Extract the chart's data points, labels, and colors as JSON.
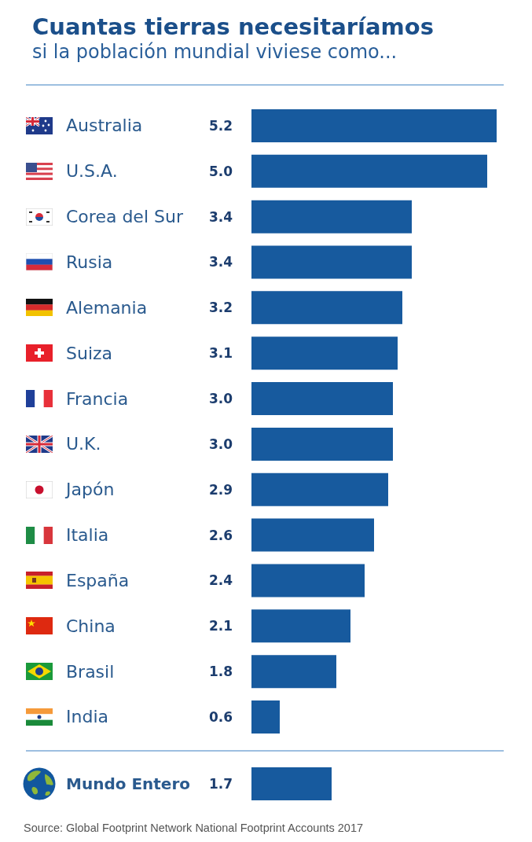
{
  "chart_data": [
    {
      "type": "bar",
      "orientation": "horizontal",
      "title": "Cuantas tierras necesitaríamos",
      "subtitle": "si la población mundial viviese como...",
      "categories": [
        "Australia",
        "U.S.A.",
        "Corea del Sur",
        "Rusia",
        "Alemania",
        "Suiza",
        "Francia",
        "U.K.",
        "Japón",
        "Italia",
        "España",
        "China",
        "Brasil",
        "India"
      ],
      "values": [
        5.2,
        5.0,
        3.4,
        3.4,
        3.2,
        3.1,
        3.0,
        3.0,
        2.9,
        2.6,
        2.4,
        2.1,
        1.8,
        0.6
      ],
      "value_labels": [
        "5.2",
        "5.0",
        "3.4",
        "3.4",
        "3.2",
        "3.1",
        "3.0",
        "3.0",
        "2.9",
        "2.6",
        "2.4",
        "2.1",
        "1.8",
        "0.6"
      ],
      "color": "#175a9e",
      "tick_labels": "y"
    },
    {
      "type": "bar",
      "orientation": "horizontal",
      "categories": [
        "Mundo Entero"
      ],
      "values": [
        1.7
      ],
      "value_labels": [
        "1.7"
      ],
      "color": "#175a9e",
      "tick_labels": "y",
      "annotations": [
        "Source: Global Footprint Network National Footprint Accounts 2017"
      ]
    }
  ]
}
